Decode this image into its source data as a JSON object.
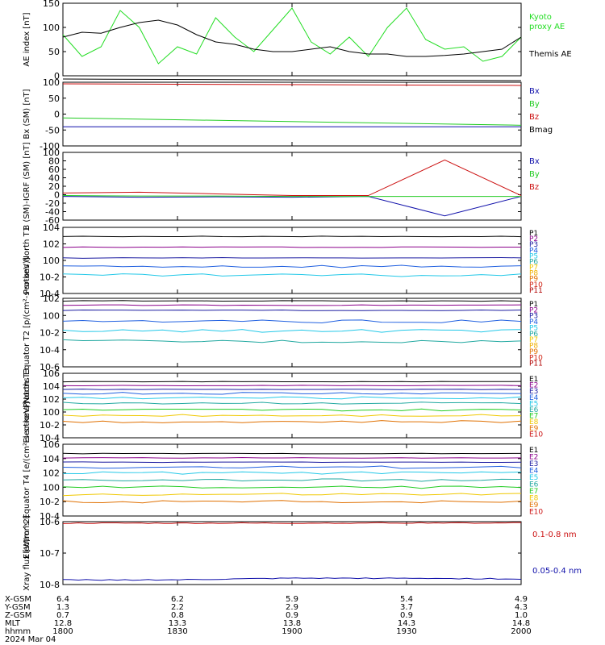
{
  "footer": {
    "rows": [
      {
        "label": "X-GSM",
        "values": [
          "6.4",
          "6.2",
          "5.9",
          "5.4",
          "4.9"
        ]
      },
      {
        "label": "Y-GSM",
        "values": [
          "1.3",
          "2.2",
          "2.9",
          "3.7",
          "4.3"
        ]
      },
      {
        "label": "Z-GSM",
        "values": [
          "0.7",
          "0.8",
          "0.9",
          "0.9",
          "1.0"
        ]
      },
      {
        "label": "MLT",
        "values": [
          "12.8",
          "13.3",
          "13.8",
          "14.3",
          "14.8"
        ]
      },
      {
        "label": "hhmm",
        "values": [
          "1800",
          "1830",
          "1900",
          "1930",
          "2000"
        ]
      }
    ],
    "date": "2024 Mar 04"
  },
  "chart_data": [
    {
      "type": "line",
      "ylabel": "AE index [nT]",
      "ylim": [
        0,
        150
      ],
      "yticks": [
        "0",
        "50",
        "100",
        "150"
      ],
      "x": [
        1800,
        1805,
        1810,
        1815,
        1820,
        1825,
        1830,
        1835,
        1840,
        1845,
        1850,
        1855,
        1900,
        1905,
        1910,
        1915,
        1920,
        1925,
        1930,
        1935,
        1940,
        1945,
        1950,
        1955,
        2000
      ],
      "series": [
        {
          "name": "Kyoto proxy AE",
          "color": "#22dd22",
          "values": [
            85,
            40,
            60,
            135,
            100,
            25,
            60,
            45,
            120,
            80,
            50,
            95,
            140,
            70,
            45,
            80,
            40,
            100,
            140,
            75,
            55,
            60,
            30,
            40,
            80
          ]
        },
        {
          "name": "Themis AE",
          "color": "#000000",
          "values": [
            80,
            90,
            88,
            100,
            110,
            115,
            105,
            85,
            70,
            65,
            55,
            50,
            50,
            55,
            60,
            50,
            45,
            45,
            40,
            40,
            42,
            45,
            50,
            55,
            80
          ]
        }
      ],
      "legend_title": "Kyoto proxy AE"
    },
    {
      "type": "line",
      "ylabel": "Bx (SM) [nT]",
      "ylim": [
        -100,
        100
      ],
      "yticks": [
        "-100",
        "-50",
        "0",
        "50",
        "100"
      ],
      "series": [
        {
          "name": "Bx",
          "color": "#1010aa",
          "values": [
            -40,
            -40
          ]
        },
        {
          "name": "By",
          "color": "#22cc22",
          "values": [
            -12,
            -35
          ]
        },
        {
          "name": "Bz",
          "color": "#cc1111",
          "values": [
            95,
            90
          ]
        },
        {
          "name": "Bmag",
          "color": "#000000",
          "values": [
            110,
            105
          ]
        }
      ]
    },
    {
      "type": "line",
      "ylabel": "B (SM)-IGRF (SM) [nT]",
      "ylim": [
        -60,
        100
      ],
      "yticks": [
        "-60",
        "-40",
        "-20",
        "0",
        "20",
        "40",
        "60",
        "80",
        "100"
      ],
      "series": [
        {
          "name": "Bx",
          "color": "#1010aa",
          "values": [
            -4,
            -6,
            -5,
            -6,
            -4,
            -50,
            -4
          ]
        },
        {
          "name": "By",
          "color": "#22cc22",
          "values": [
            -2,
            -3,
            -3,
            -4,
            -4,
            -4,
            -4
          ]
        },
        {
          "name": "Bz",
          "color": "#cc1111",
          "values": [
            4,
            6,
            2,
            -2,
            -2,
            82,
            -2
          ]
        }
      ]
    },
    {
      "type": "line",
      "ylabel": "Protons North T1",
      "ylim": [
        "1e-4",
        "1e4"
      ],
      "yticks": [
        "10^-4",
        "10^-2",
        "10^0",
        "10^2",
        "10^4"
      ],
      "series_names": [
        "P1",
        "P2",
        "P3",
        "P4",
        "P5",
        "P6",
        "P7",
        "P8",
        "P9",
        "P10",
        "P11"
      ],
      "series_colors": [
        "#000000",
        "#8b008b",
        "#1a1aa0",
        "#2060e0",
        "#22c8e8",
        "#20a8a0",
        "#f0c800",
        "#f0b000",
        "#e07000",
        "#d02010",
        "#b00000"
      ],
      "levels_log10": [
        2.9,
        1.6,
        0.3,
        -0.7,
        -1.8
      ]
    },
    {
      "type": "line",
      "ylabel": "Protons Equator T2 [p/(cm²-s-sr-keV)]",
      "ylim": [
        "1e-6",
        "1e2"
      ],
      "yticks": [
        "10^-6",
        "10^-4",
        "10^-2",
        "10^0",
        "10^2"
      ],
      "series_names": [
        "P1",
        "P2",
        "P3",
        "P4",
        "P5",
        "P6",
        "P7",
        "P8",
        "P9",
        "P10",
        "P11"
      ],
      "series_colors": [
        "#000000",
        "#8b008b",
        "#1a1aa0",
        "#2060e0",
        "#22c8e8",
        "#20a8a0",
        "#f0c800",
        "#f0b000",
        "#e07000",
        "#d02010",
        "#b00000"
      ],
      "levels_log10": [
        1.7,
        1.2,
        0.6,
        -0.7,
        -1.8,
        -3.0
      ]
    },
    {
      "type": "line",
      "ylabel": "Electrons North T3",
      "ylim": [
        "1e-4",
        "1e6"
      ],
      "yticks": [
        "10^-4",
        "10^-2",
        "10^0",
        "10^2",
        "10^4",
        "10^6"
      ],
      "series_names": [
        "E1",
        "E2",
        "E3",
        "E4",
        "E5",
        "E6",
        "E7",
        "E8",
        "E9",
        "E10"
      ],
      "series_colors": [
        "#000000",
        "#8b008b",
        "#1a1aa0",
        "#2060e0",
        "#22c8e8",
        "#20a8a0",
        "#22cc22",
        "#f0c800",
        "#e07000",
        "#cc1111"
      ],
      "levels_log10": [
        4.7,
        4.1,
        3.5,
        2.9,
        2.2,
        1.4,
        0.3,
        -0.5,
        -1.5
      ]
    },
    {
      "type": "line",
      "ylabel": "Electrons Equator T4 [e/(cm²-s-sr-keV)]",
      "ylim": [
        "1e-4",
        "1e6"
      ],
      "yticks": [
        "10^-4",
        "10^-2",
        "10^0",
        "10^2",
        "10^4",
        "10^6"
      ],
      "series_names": [
        "E1",
        "E2",
        "E3",
        "E4",
        "E5",
        "E6",
        "E7",
        "E8",
        "E9",
        "E10"
      ],
      "series_colors": [
        "#000000",
        "#8b008b",
        "#1a1aa0",
        "#2060e0",
        "#22c8e8",
        "#20a8a0",
        "#22cc22",
        "#f0c800",
        "#e07000",
        "#cc1111"
      ],
      "levels_log10": [
        4.7,
        4.1,
        3.5,
        2.8,
        2.0,
        1.0,
        0.0,
        -1.0,
        -2.0
      ]
    },
    {
      "type": "line",
      "ylabel": "Xray flux [W/m^2]",
      "ylim": [
        "1e-8",
        "1e-6"
      ],
      "yticks": [
        "10^-8",
        "10^-7",
        "10^-6"
      ],
      "series": [
        {
          "name": "0.1-0.8 nm",
          "color": "#cc1111",
          "values_log10": [
            -6.05,
            -6.05,
            -6.05,
            -6.04,
            -6.04
          ]
        },
        {
          "name": "0.05-0.4 nm",
          "color": "#1010aa",
          "values_log10": [
            -7.85,
            -7.85,
            -7.8,
            -7.8,
            -7.82
          ]
        }
      ]
    }
  ]
}
